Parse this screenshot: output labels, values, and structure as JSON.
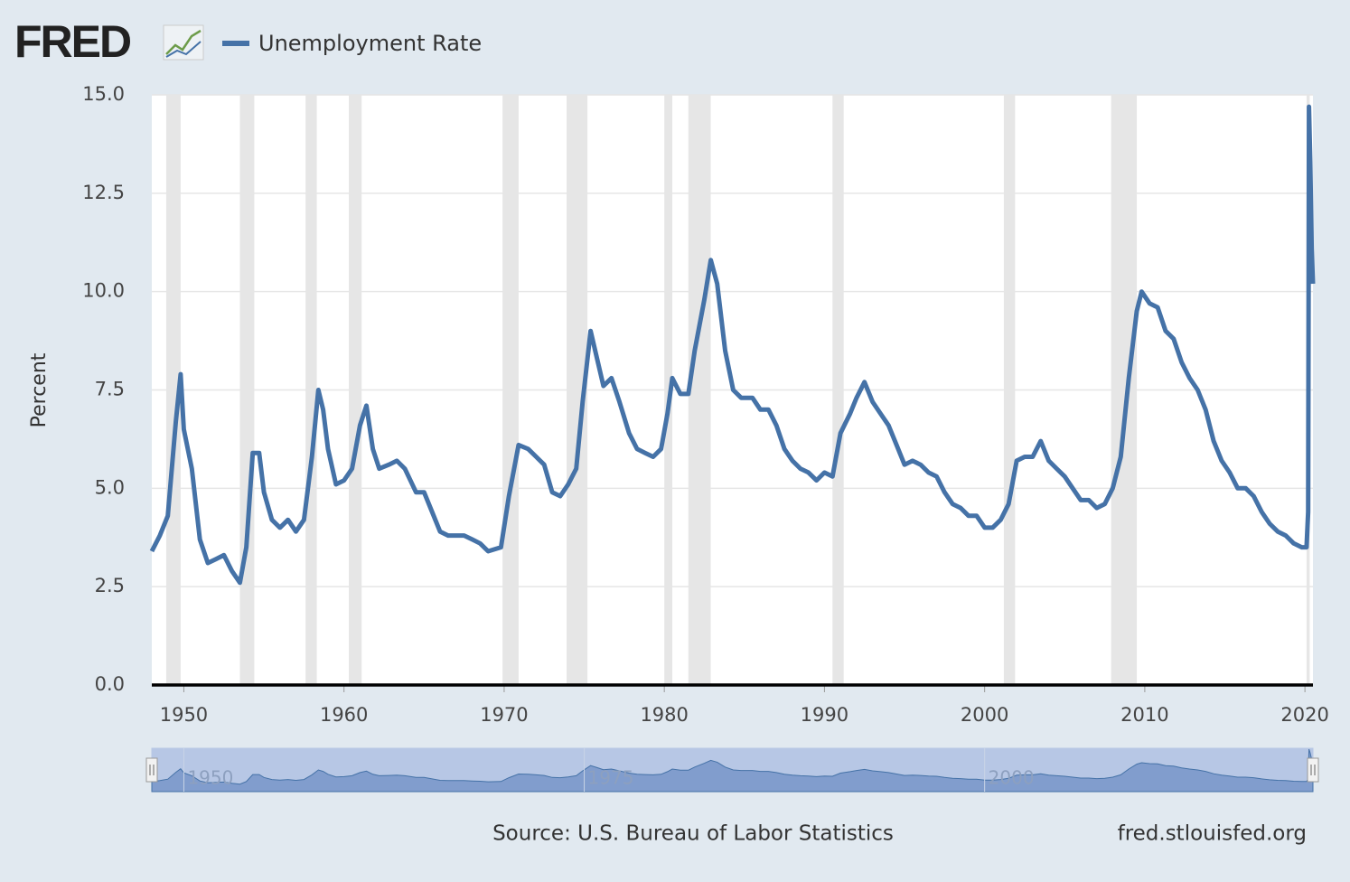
{
  "logo": "FRED",
  "chart_data": {
    "type": "line",
    "legend": "top-left",
    "grid": true,
    "recession_color": "#e6e6e6",
    "ylabel": "Percent",
    "source": "Source: U.S. Bureau of Labor Statistics",
    "site": "fred.stlouisfed.org",
    "xlim": [
      1948,
      2020.5
    ],
    "ylim": [
      0,
      15
    ],
    "xticks": [
      1950,
      1960,
      1970,
      1980,
      1990,
      2000,
      2010,
      2020
    ],
    "yticks": [
      {
        "value": 0,
        "label": "0.0"
      },
      2.5,
      {
        "value": 5,
        "label": "5.0"
      },
      7.5,
      {
        "value": 10,
        "label": "10.0"
      },
      12.5,
      {
        "value": 15,
        "label": "15.0"
      }
    ],
    "navigator_ticks": [
      1950,
      1975,
      2000
    ],
    "recessions": [
      [
        1948.9,
        1949.8
      ],
      [
        1953.5,
        1954.4
      ],
      [
        1957.6,
        1958.3
      ],
      [
        1960.3,
        1961.1
      ],
      [
        1969.9,
        1970.9
      ],
      [
        1973.9,
        1975.2
      ],
      [
        1980.0,
        1980.5
      ],
      [
        1981.5,
        1982.9
      ],
      [
        1990.5,
        1991.2
      ],
      [
        2001.2,
        2001.9
      ],
      [
        2007.9,
        2009.5
      ],
      [
        2020.1,
        2020.3
      ]
    ],
    "series": [
      {
        "name": "Unemployment Rate",
        "color": "#4572a7",
        "x": [
          1948.0,
          1948.5,
          1949.0,
          1949.5,
          1949.8,
          1950.0,
          1950.5,
          1951.0,
          1951.5,
          1952.0,
          1952.5,
          1953.0,
          1953.5,
          1953.9,
          1954.3,
          1954.7,
          1955.0,
          1955.5,
          1956.0,
          1956.5,
          1957.0,
          1957.5,
          1958.0,
          1958.4,
          1958.7,
          1959.0,
          1959.5,
          1960.0,
          1960.5,
          1961.0,
          1961.4,
          1961.8,
          1962.2,
          1962.8,
          1963.3,
          1963.8,
          1964.5,
          1965.0,
          1965.5,
          1966.0,
          1966.5,
          1967.0,
          1967.5,
          1968.0,
          1968.5,
          1969.0,
          1969.8,
          1970.3,
          1970.9,
          1971.5,
          1972.0,
          1972.5,
          1973.0,
          1973.5,
          1974.0,
          1974.5,
          1974.9,
          1975.4,
          1975.8,
          1976.2,
          1976.7,
          1977.2,
          1977.8,
          1978.3,
          1978.8,
          1979.3,
          1979.8,
          1980.2,
          1980.5,
          1981.0,
          1981.5,
          1981.9,
          1982.5,
          1982.9,
          1983.3,
          1983.8,
          1984.3,
          1984.8,
          1985.5,
          1986.0,
          1986.5,
          1987.0,
          1987.5,
          1988.0,
          1988.5,
          1989.0,
          1989.5,
          1990.0,
          1990.5,
          1991.0,
          1991.6,
          1992.0,
          1992.5,
          1993.0,
          1993.5,
          1994.0,
          1994.5,
          1995.0,
          1995.5,
          1996.0,
          1996.5,
          1997.0,
          1997.5,
          1998.0,
          1998.5,
          1999.0,
          1999.5,
          2000.0,
          2000.5,
          2001.0,
          2001.5,
          2002.0,
          2002.5,
          2003.0,
          2003.5,
          2004.0,
          2004.5,
          2005.0,
          2005.5,
          2006.0,
          2006.5,
          2007.0,
          2007.5,
          2008.0,
          2008.5,
          2009.0,
          2009.5,
          2009.8,
          2010.3,
          2010.8,
          2011.3,
          2011.8,
          2012.3,
          2012.8,
          2013.3,
          2013.8,
          2014.3,
          2014.8,
          2015.3,
          2015.8,
          2016.3,
          2016.8,
          2017.3,
          2017.8,
          2018.3,
          2018.8,
          2019.3,
          2019.8,
          2020.1,
          2020.2,
          2020.25,
          2020.33,
          2020.42,
          2020.5
        ],
        "values": [
          3.4,
          3.8,
          4.3,
          6.7,
          7.9,
          6.5,
          5.5,
          3.7,
          3.1,
          3.2,
          3.3,
          2.9,
          2.6,
          3.5,
          5.9,
          5.9,
          4.9,
          4.2,
          4.0,
          4.2,
          3.9,
          4.2,
          5.8,
          7.5,
          7.0,
          6.0,
          5.1,
          5.2,
          5.5,
          6.6,
          7.1,
          6.0,
          5.5,
          5.6,
          5.7,
          5.5,
          4.9,
          4.9,
          4.4,
          3.9,
          3.8,
          3.8,
          3.8,
          3.7,
          3.6,
          3.4,
          3.5,
          4.8,
          6.1,
          6.0,
          5.8,
          5.6,
          4.9,
          4.8,
          5.1,
          5.5,
          7.2,
          9.0,
          8.3,
          7.6,
          7.8,
          7.2,
          6.4,
          6.0,
          5.9,
          5.8,
          6.0,
          6.9,
          7.8,
          7.4,
          7.4,
          8.5,
          9.8,
          10.8,
          10.2,
          8.5,
          7.5,
          7.3,
          7.3,
          7.0,
          7.0,
          6.6,
          6.0,
          5.7,
          5.5,
          5.4,
          5.2,
          5.4,
          5.3,
          6.4,
          6.9,
          7.3,
          7.7,
          7.2,
          6.9,
          6.6,
          6.1,
          5.6,
          5.7,
          5.6,
          5.4,
          5.3,
          4.9,
          4.6,
          4.5,
          4.3,
          4.3,
          4.0,
          4.0,
          4.2,
          4.6,
          5.7,
          5.8,
          5.8,
          6.2,
          5.7,
          5.5,
          5.3,
          5.0,
          4.7,
          4.7,
          4.5,
          4.6,
          5.0,
          5.8,
          7.8,
          9.5,
          10.0,
          9.7,
          9.6,
          9.0,
          8.8,
          8.2,
          7.8,
          7.5,
          7.0,
          6.2,
          5.7,
          5.4,
          5.0,
          5.0,
          4.8,
          4.4,
          4.1,
          3.9,
          3.8,
          3.6,
          3.5,
          3.5,
          4.4,
          14.7,
          13.3,
          11.1,
          10.2
        ]
      }
    ]
  }
}
